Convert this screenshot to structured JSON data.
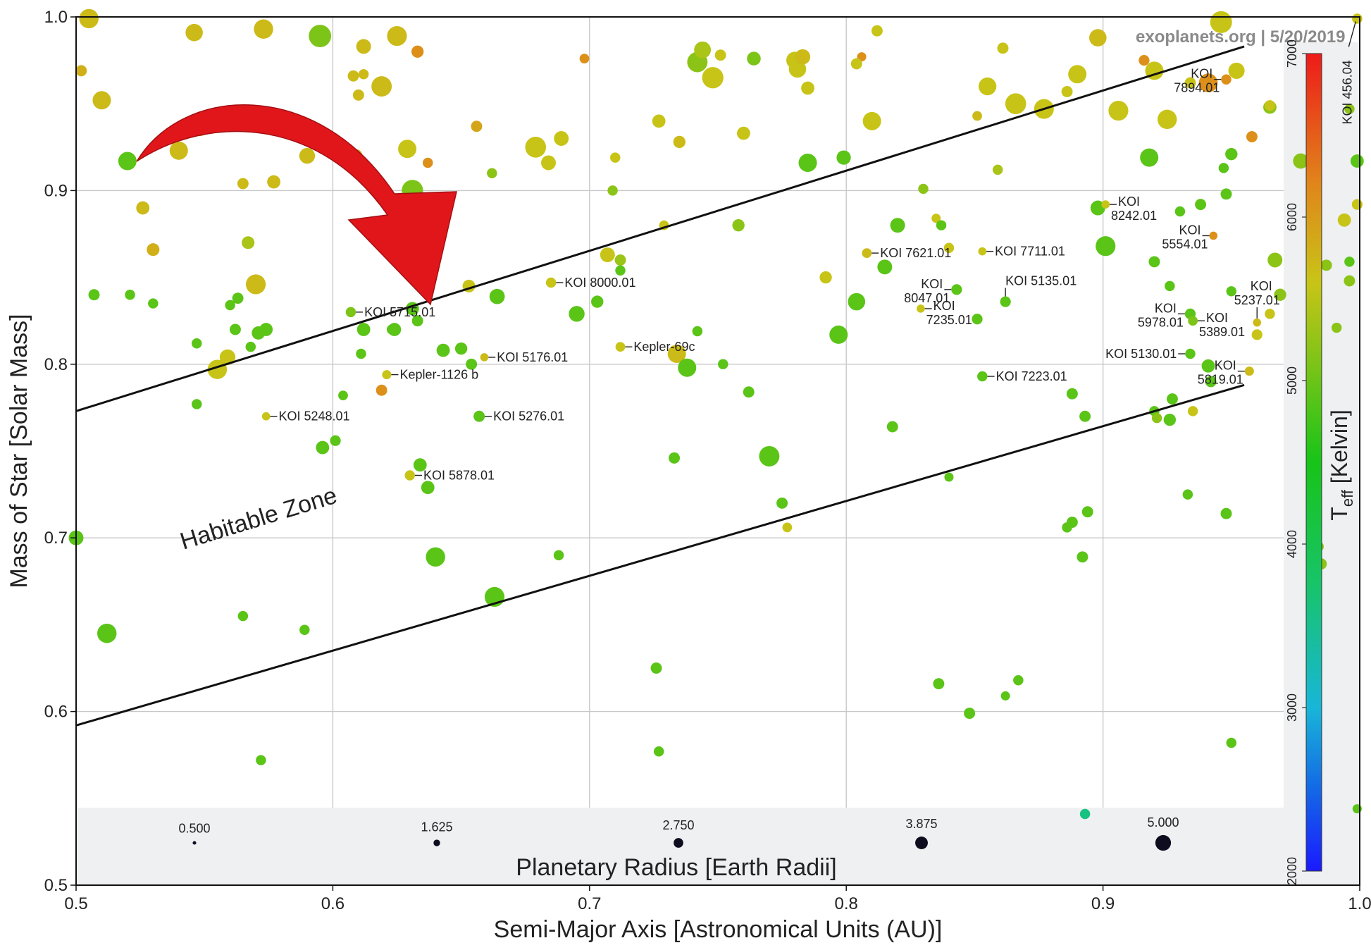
{
  "chart_data": {
    "type": "scatter",
    "source": "exoplanets.org | 5/20/2019",
    "xlabel": "Semi-Major Axis [Astronomical Units (AU)]",
    "ylabel": "Mass of Star [Solar Mass]",
    "xlim": [
      0.5,
      1.0
    ],
    "ylim": [
      0.5,
      1.0
    ],
    "xticks": [
      "0.5",
      "0.6",
      "0.7",
      "0.8",
      "0.9",
      "1.0"
    ],
    "yticks": [
      "0.5",
      "0.6",
      "0.7",
      "0.8",
      "0.9",
      "1.0"
    ],
    "grid": true,
    "size_legend": {
      "title": "Planetary Radius [Earth Radii]",
      "values": [
        "0.500",
        "1.625",
        "2.750",
        "3.875",
        "5.000"
      ]
    },
    "colorbar": {
      "title": "T",
      "title_sub": "eff",
      "title_unit": " [Kelvin]",
      "range": [
        2000,
        7000
      ],
      "ticks": [
        "2000",
        "3000",
        "4000",
        "5000",
        "6000",
        "7000"
      ]
    },
    "habitable_zone": {
      "label": "Habitable Zone",
      "upper": [
        [
          0.5,
          0.773
        ],
        [
          0.955,
          0.983
        ]
      ],
      "lower": [
        [
          0.5,
          0.592
        ],
        [
          0.955,
          0.788
        ]
      ]
    },
    "arrow_color": "#e0161b",
    "labeled_planets": [
      {
        "name": "KOI 5715.01",
        "x": 0.607,
        "y": 0.83,
        "r": 1.4,
        "t": 5100,
        "pos": "right"
      },
      {
        "name": "KOI 8000.01",
        "x": 0.685,
        "y": 0.847,
        "r": 1.4,
        "t": 5600,
        "pos": "right"
      },
      {
        "name": "KOI 5176.01",
        "x": 0.659,
        "y": 0.804,
        "r": 1.0,
        "t": 5700,
        "pos": "right"
      },
      {
        "name": "Kepler-1126 b",
        "x": 0.621,
        "y": 0.794,
        "r": 1.2,
        "t": 5600,
        "pos": "right"
      },
      {
        "name": "Kepler-69c",
        "x": 0.712,
        "y": 0.81,
        "r": 1.3,
        "t": 5600,
        "pos": "right"
      },
      {
        "name": "KOI 5248.01",
        "x": 0.574,
        "y": 0.77,
        "r": 1.0,
        "t": 5600,
        "pos": "right"
      },
      {
        "name": "KOI 5276.01",
        "x": 0.657,
        "y": 0.77,
        "r": 1.6,
        "t": 4900,
        "pos": "right"
      },
      {
        "name": "KOI 5878.01",
        "x": 0.63,
        "y": 0.736,
        "r": 1.4,
        "t": 5600,
        "pos": "right"
      },
      {
        "name": "KOI 7621.01",
        "x": 0.808,
        "y": 0.864,
        "r": 1.3,
        "t": 5700,
        "pos": "right"
      },
      {
        "name": "KOI 7711.01",
        "x": 0.853,
        "y": 0.865,
        "r": 1.0,
        "t": 5600,
        "pos": "right"
      },
      {
        "name": "KOI 8047.01",
        "x": 0.843,
        "y": 0.843,
        "r": 1.5,
        "t": 4900,
        "pos": "left2"
      },
      {
        "name": "KOI 5135.01",
        "x": 0.862,
        "y": 0.836,
        "r": 1.5,
        "t": 4900,
        "pos": "above"
      },
      {
        "name": "KOI 7235.01",
        "x": 0.829,
        "y": 0.832,
        "r": 1.0,
        "t": 5600,
        "pos": "right2"
      },
      {
        "name": "KOI 7223.01",
        "x": 0.853,
        "y": 0.793,
        "r": 1.4,
        "t": 4900,
        "pos": "right"
      },
      {
        "name": "KOI 8242.01",
        "x": 0.901,
        "y": 0.892,
        "r": 1.0,
        "t": 5600,
        "pos": "right2"
      },
      {
        "name": "KOI 7894.01",
        "x": 0.948,
        "y": 0.964,
        "r": 1.4,
        "t": 6100,
        "pos": "left2"
      },
      {
        "name": "KOI 5554.01",
        "x": 0.943,
        "y": 0.874,
        "r": 1.0,
        "t": 6100,
        "pos": "left2"
      },
      {
        "name": "KOI 5237.01",
        "x": 0.96,
        "y": 0.824,
        "r": 1.0,
        "t": 5700,
        "pos": "above2"
      },
      {
        "name": "KOI 5978.01",
        "x": 0.934,
        "y": 0.829,
        "r": 1.5,
        "t": 4900,
        "pos": "left2"
      },
      {
        "name": "KOI 5389.01",
        "x": 0.935,
        "y": 0.825,
        "r": 1.3,
        "t": 5100,
        "pos": "right2"
      },
      {
        "name": "KOI 5130.01",
        "x": 0.934,
        "y": 0.806,
        "r": 1.4,
        "t": 4900,
        "pos": "left"
      },
      {
        "name": "KOI 5819.01",
        "x": 0.957,
        "y": 0.796,
        "r": 1.2,
        "t": 5700,
        "pos": "left2"
      },
      {
        "name": "KOI 456.04",
        "x": 0.999,
        "y": 0.999,
        "r": 1.4,
        "t": 5600,
        "pos": "vertical"
      }
    ],
    "points": [
      [
        0.502,
        0.969,
        1.6,
        5800
      ],
      [
        0.505,
        0.999,
        3.2,
        5700
      ],
      [
        0.51,
        0.952,
        3.0,
        5700
      ],
      [
        0.54,
        0.923,
        3.0,
        5700
      ],
      [
        0.546,
        0.991,
        2.8,
        5700
      ],
      [
        0.565,
        0.904,
        1.6,
        5700
      ],
      [
        0.548,
        0.937,
        3.3,
        5700
      ],
      [
        0.573,
        0.993,
        3.2,
        5700
      ],
      [
        0.526,
        0.89,
        2.0,
        5700
      ],
      [
        0.53,
        0.866,
        1.9,
        5800
      ],
      [
        0.577,
        0.905,
        2.0,
        5700
      ],
      [
        0.567,
        0.87,
        1.9,
        5400
      ],
      [
        0.57,
        0.846,
        3.3,
        5700
      ],
      [
        0.583,
        0.938,
        1.8,
        5800
      ],
      [
        0.595,
        0.989,
        3.8,
        5100
      ],
      [
        0.608,
        0.966,
        1.6,
        5700
      ],
      [
        0.61,
        0.955,
        1.6,
        5700
      ],
      [
        0.612,
        0.967,
        1.4,
        5700
      ],
      [
        0.612,
        0.983,
        2.3,
        5700
      ],
      [
        0.59,
        0.92,
        2.5,
        5700
      ],
      [
        0.619,
        0.96,
        3.4,
        5700
      ],
      [
        0.625,
        0.989,
        3.3,
        5700
      ],
      [
        0.629,
        0.924,
        3.0,
        5600
      ],
      [
        0.633,
        0.98,
        1.8,
        6100
      ],
      [
        0.637,
        0.916,
        1.4,
        6100
      ],
      [
        0.631,
        0.9,
        3.6,
        5100
      ],
      [
        0.609,
        0.92,
        2.0,
        5800
      ],
      [
        0.656,
        0.937,
        1.6,
        5900
      ],
      [
        0.653,
        0.845,
        1.9,
        5600
      ],
      [
        0.662,
        0.91,
        1.4,
        5200
      ],
      [
        0.679,
        0.925,
        3.5,
        5600
      ],
      [
        0.684,
        0.916,
        2.3,
        5600
      ],
      [
        0.689,
        0.93,
        2.3,
        5600
      ],
      [
        0.698,
        0.976,
        1.3,
        6100
      ],
      [
        0.71,
        0.919,
        1.4,
        5600
      ],
      [
        0.709,
        0.9,
        1.4,
        5200
      ],
      [
        0.707,
        0.863,
        2.3,
        5600
      ],
      [
        0.712,
        0.86,
        1.6,
        5300
      ],
      [
        0.727,
        0.94,
        2.0,
        5600
      ],
      [
        0.729,
        0.88,
        1.3,
        5600
      ],
      [
        0.735,
        0.928,
        1.8,
        5700
      ],
      [
        0.742,
        0.974,
        3.4,
        5200
      ],
      [
        0.748,
        0.965,
        3.6,
        5600
      ],
      [
        0.751,
        0.978,
        1.6,
        5600
      ],
      [
        0.744,
        0.981,
        2.7,
        5400
      ],
      [
        0.76,
        0.933,
        2.0,
        5600
      ],
      [
        0.758,
        0.88,
        1.8,
        5200
      ],
      [
        0.764,
        0.976,
        2.1,
        5100
      ],
      [
        0.781,
        0.97,
        2.8,
        5600
      ],
      [
        0.785,
        0.959,
        2.0,
        5600
      ],
      [
        0.78,
        0.975,
        2.8,
        5600
      ],
      [
        0.783,
        0.977,
        2.4,
        5700
      ],
      [
        0.792,
        0.85,
        1.8,
        5600
      ],
      [
        0.806,
        0.977,
        1.2,
        6100
      ],
      [
        0.81,
        0.94,
        3.0,
        5600
      ],
      [
        0.812,
        0.992,
        1.6,
        5600
      ],
      [
        0.804,
        0.973,
        1.6,
        5600
      ],
      [
        0.83,
        0.901,
        1.4,
        5200
      ],
      [
        0.835,
        0.884,
        1.2,
        5600
      ],
      [
        0.84,
        0.867,
        1.4,
        5600
      ],
      [
        0.851,
        0.943,
        1.3,
        5700
      ],
      [
        0.855,
        0.96,
        2.9,
        5600
      ],
      [
        0.859,
        0.912,
        1.4,
        5400
      ],
      [
        0.861,
        0.982,
        1.6,
        5600
      ],
      [
        0.866,
        0.95,
        3.5,
        5600
      ],
      [
        0.877,
        0.947,
        3.3,
        5600
      ],
      [
        0.886,
        0.957,
        1.6,
        5600
      ],
      [
        0.89,
        0.967,
        3.0,
        5600
      ],
      [
        0.898,
        0.988,
        2.8,
        5700
      ],
      [
        0.906,
        0.946,
        3.3,
        5600
      ],
      [
        0.916,
        0.975,
        1.5,
        6100
      ],
      [
        0.92,
        0.969,
        3.0,
        5600
      ],
      [
        0.925,
        0.941,
        3.2,
        5600
      ],
      [
        0.934,
        0.962,
        1.6,
        5600
      ],
      [
        0.941,
        0.962,
        3.1,
        6100
      ],
      [
        0.946,
        0.997,
        3.7,
        5600
      ],
      [
        0.952,
        0.969,
        2.6,
        5600
      ],
      [
        0.958,
        0.931,
        1.6,
        6100
      ],
      [
        0.965,
        0.948,
        2.0,
        5200
      ],
      [
        0.965,
        0.949,
        1.5,
        5600
      ],
      [
        0.52,
        0.917,
        3.0,
        4900
      ],
      [
        0.507,
        0.84,
        1.6,
        4900
      ],
      [
        0.521,
        0.84,
        1.4,
        4900
      ],
      [
        0.53,
        0.835,
        1.4,
        4900
      ],
      [
        0.547,
        0.812,
        1.4,
        4900
      ],
      [
        0.562,
        0.82,
        1.6,
        4900
      ],
      [
        0.568,
        0.81,
        1.4,
        4900
      ],
      [
        0.571,
        0.818,
        2.0,
        4900
      ],
      [
        0.574,
        0.82,
        2.0,
        4900
      ],
      [
        0.563,
        0.838,
        1.6,
        4900
      ],
      [
        0.56,
        0.834,
        1.4,
        4900
      ],
      [
        0.612,
        0.82,
        2.0,
        4900
      ],
      [
        0.624,
        0.82,
        2.0,
        4900
      ],
      [
        0.623,
        0.82,
        1.4,
        4900
      ],
      [
        0.631,
        0.832,
        2.0,
        4900
      ],
      [
        0.633,
        0.825,
        1.6,
        4900
      ],
      [
        0.611,
        0.806,
        1.4,
        4900
      ],
      [
        0.643,
        0.808,
        2.0,
        4900
      ],
      [
        0.65,
        0.809,
        1.8,
        4900
      ],
      [
        0.654,
        0.8,
        1.6,
        4900
      ],
      [
        0.664,
        0.839,
        2.4,
        4900
      ],
      [
        0.695,
        0.829,
        2.5,
        4900
      ],
      [
        0.712,
        0.854,
        1.4,
        4900
      ],
      [
        0.703,
        0.836,
        1.8,
        4900
      ],
      [
        0.742,
        0.819,
        1.4,
        4900
      ],
      [
        0.752,
        0.8,
        1.4,
        4900
      ],
      [
        0.785,
        0.916,
        3.0,
        4900
      ],
      [
        0.799,
        0.919,
        2.2,
        4900
      ],
      [
        0.804,
        0.836,
        2.8,
        4900
      ],
      [
        0.797,
        0.817,
        3.0,
        4900
      ],
      [
        0.815,
        0.856,
        2.3,
        4900
      ],
      [
        0.82,
        0.88,
        2.3,
        4900
      ],
      [
        0.837,
        0.88,
        1.4,
        4900
      ],
      [
        0.851,
        0.826,
        1.5,
        4900
      ],
      [
        0.898,
        0.89,
        2.3,
        4900
      ],
      [
        0.901,
        0.868,
        3.3,
        4900
      ],
      [
        0.918,
        0.919,
        3.0,
        4900
      ],
      [
        0.92,
        0.859,
        1.6,
        4900
      ],
      [
        0.926,
        0.845,
        1.4,
        4900
      ],
      [
        0.938,
        0.892,
        1.6,
        4900
      ],
      [
        0.93,
        0.888,
        1.4,
        4900
      ],
      [
        0.947,
        0.913,
        1.4,
        4900
      ],
      [
        0.95,
        0.921,
        1.8,
        4900
      ],
      [
        0.948,
        0.898,
        1.6,
        4900
      ],
      [
        0.967,
        0.86,
        2.3,
        5200
      ],
      [
        0.969,
        0.84,
        1.8,
        5200
      ],
      [
        0.977,
        0.917,
        2.4,
        5200
      ],
      [
        0.987,
        0.857,
        1.6,
        5200
      ],
      [
        0.994,
        0.883,
        2.0,
        5600
      ],
      [
        0.996,
        0.947,
        1.4,
        5200
      ],
      [
        0.555,
        0.797,
        3.2,
        5600
      ],
      [
        0.559,
        0.804,
        2.5,
        5600
      ],
      [
        0.547,
        0.777,
        1.4,
        4900
      ],
      [
        0.596,
        0.752,
        2.0,
        4900
      ],
      [
        0.601,
        0.756,
        1.5,
        4900
      ],
      [
        0.634,
        0.742,
        2.0,
        4900
      ],
      [
        0.637,
        0.729,
        2.0,
        4900
      ],
      [
        0.619,
        0.785,
        1.6,
        6100
      ],
      [
        0.604,
        0.782,
        1.3,
        4900
      ],
      [
        0.64,
        0.689,
        3.2,
        4900
      ],
      [
        0.663,
        0.666,
        3.3,
        4900
      ],
      [
        0.734,
        0.806,
        3.0,
        5700
      ],
      [
        0.738,
        0.798,
        3.0,
        4900
      ],
      [
        0.733,
        0.746,
        1.6,
        4900
      ],
      [
        0.77,
        0.747,
        3.4,
        4900
      ],
      [
        0.762,
        0.784,
        1.6,
        4900
      ],
      [
        0.775,
        0.72,
        1.6,
        4900
      ],
      [
        0.777,
        0.706,
        1.3,
        5600
      ],
      [
        0.818,
        0.764,
        1.6,
        4900
      ],
      [
        0.84,
        0.735,
        1.2,
        4900
      ],
      [
        0.888,
        0.783,
        1.6,
        4900
      ],
      [
        0.893,
        0.77,
        1.6,
        4900
      ],
      [
        0.894,
        0.715,
        1.6,
        4900
      ],
      [
        0.886,
        0.706,
        1.4,
        4900
      ],
      [
        0.888,
        0.709,
        1.6,
        4900
      ],
      [
        0.892,
        0.689,
        1.6,
        4900
      ],
      [
        0.92,
        0.773,
        1.4,
        4900
      ],
      [
        0.921,
        0.769,
        1.4,
        5200
      ],
      [
        0.926,
        0.768,
        1.8,
        4900
      ],
      [
        0.935,
        0.773,
        1.4,
        5600
      ],
      [
        0.927,
        0.78,
        1.6,
        4900
      ],
      [
        0.941,
        0.799,
        2.0,
        4900
      ],
      [
        0.942,
        0.79,
        1.6,
        4900
      ],
      [
        0.933,
        0.725,
        1.4,
        4900
      ],
      [
        0.948,
        0.714,
        1.6,
        4900
      ],
      [
        0.999,
        0.917,
        2.0,
        4900
      ],
      [
        0.999,
        0.892,
        1.5,
        5600
      ],
      [
        0.996,
        0.859,
        1.4,
        4900
      ],
      [
        0.996,
        0.848,
        1.6,
        5200
      ],
      [
        0.991,
        0.821,
        1.4,
        5200
      ],
      [
        0.5,
        0.7,
        2.3,
        4900
      ],
      [
        0.512,
        0.645,
        3.2,
        4900
      ],
      [
        0.565,
        0.655,
        1.4,
        4900
      ],
      [
        0.572,
        0.572,
        1.4,
        4900
      ],
      [
        0.589,
        0.647,
        1.4,
        4900
      ],
      [
        0.688,
        0.69,
        1.4,
        4900
      ],
      [
        0.726,
        0.625,
        1.6,
        4900
      ],
      [
        0.727,
        0.577,
        1.4,
        4900
      ],
      [
        0.836,
        0.616,
        1.6,
        4900
      ],
      [
        0.848,
        0.599,
        1.6,
        4900
      ],
      [
        0.862,
        0.609,
        1.2,
        4900
      ],
      [
        0.867,
        0.618,
        1.4,
        4900
      ],
      [
        0.893,
        0.541,
        1.4,
        3600
      ],
      [
        0.95,
        0.582,
        1.4,
        4900
      ],
      [
        0.984,
        0.695,
        1.4,
        5200
      ],
      [
        0.985,
        0.685,
        1.6,
        5200
      ],
      [
        0.999,
        0.544,
        1.2,
        4900
      ],
      [
        0.965,
        0.829,
        1.4,
        5600
      ],
      [
        0.95,
        0.842,
        1.4,
        4900
      ],
      [
        0.96,
        0.817,
        1.5,
        5600
      ]
    ]
  }
}
